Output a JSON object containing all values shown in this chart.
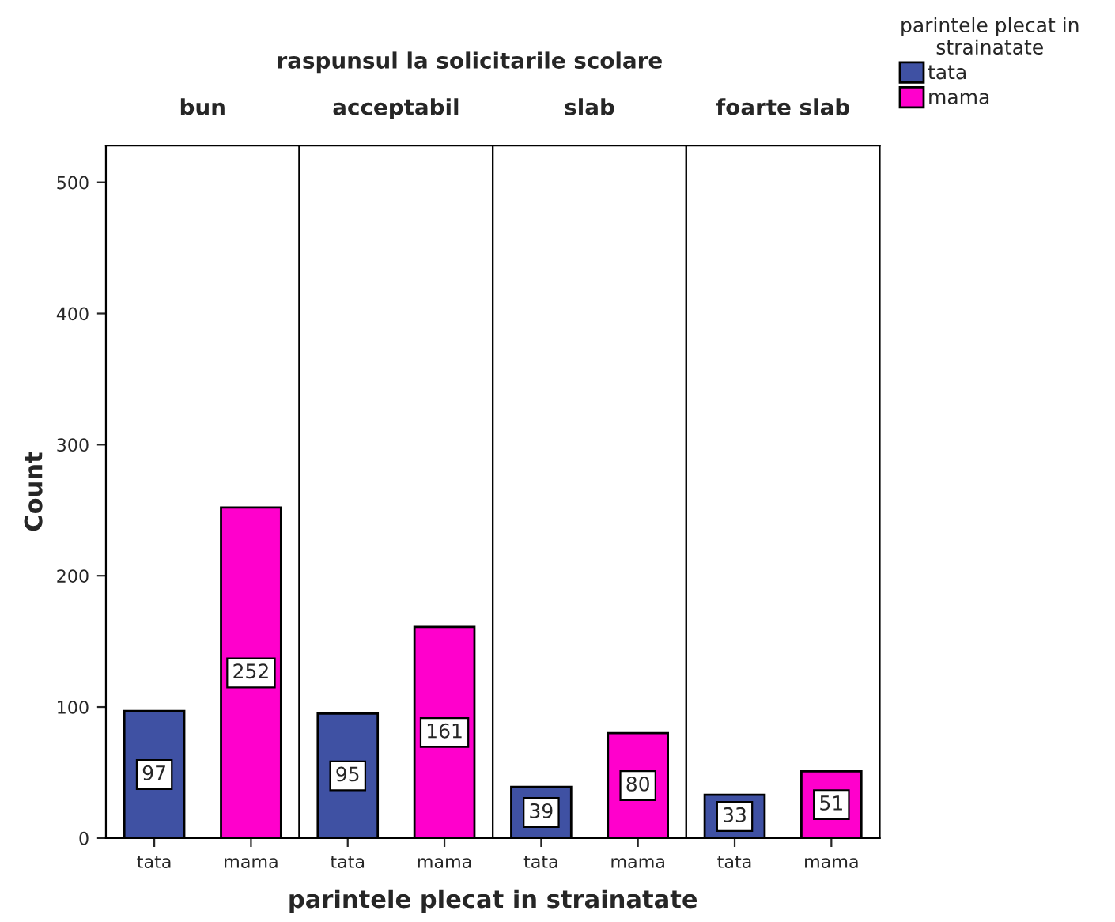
{
  "chart_data": [
    {
      "type": "bar",
      "title": "bun",
      "xlabel": "parintele plecat in strainatate",
      "ylabel": "Count",
      "legend_title": "parintele plecat in\nstrainatate",
      "legend": "top right",
      "categories": [
        "tata",
        "mama"
      ],
      "series": [
        {
          "name": "tata",
          "color": "#3f51a3",
          "values": [
            97,
            null
          ]
        },
        {
          "name": "mama",
          "color": "#ff00cc",
          "values": [
            null,
            252
          ]
        }
      ],
      "ylim": [
        0,
        528
      ],
      "yticks": [
        0,
        100,
        200,
        300,
        400,
        500
      ],
      "data_labels": true,
      "grid": false
    },
    {
      "type": "bar",
      "title": "acceptabil",
      "subtitle": "raspunsul la solicitarile scolare",
      "categories": [
        "tata",
        "mama"
      ],
      "series": [
        {
          "color": "#3f51a3",
          "values": [
            95,
            null
          ]
        },
        {
          "color": "#ff00cc",
          "values": [
            null,
            161
          ]
        }
      ],
      "ylim": [
        0,
        528
      ],
      "yticks": [
        0,
        100,
        200,
        300,
        400,
        500
      ],
      "tick_labels": "x",
      "data_labels": true,
      "grid": false
    },
    {
      "type": "bar",
      "title": "slab",
      "categories": [
        "tata",
        "mama"
      ],
      "series": [
        {
          "color": "#3f51a3",
          "values": [
            39,
            null
          ]
        },
        {
          "color": "#ff00cc",
          "values": [
            null,
            80
          ]
        }
      ],
      "ylim": [
        0,
        528
      ],
      "yticks": [
        0,
        100,
        200,
        300,
        400,
        500
      ],
      "tick_labels": "x",
      "data_labels": true,
      "grid": false
    },
    {
      "type": "bar",
      "title": "foarte slab",
      "categories": [
        "tata",
        "mama"
      ],
      "series": [
        {
          "color": "#3f51a3",
          "values": [
            33,
            null
          ]
        },
        {
          "color": "#ff00cc",
          "values": [
            null,
            51
          ]
        }
      ],
      "ylim": [
        0,
        528
      ],
      "yticks": [
        0,
        100,
        200,
        300,
        400,
        500
      ],
      "tick_labels": "x",
      "data_labels": true,
      "grid": false
    }
  ]
}
